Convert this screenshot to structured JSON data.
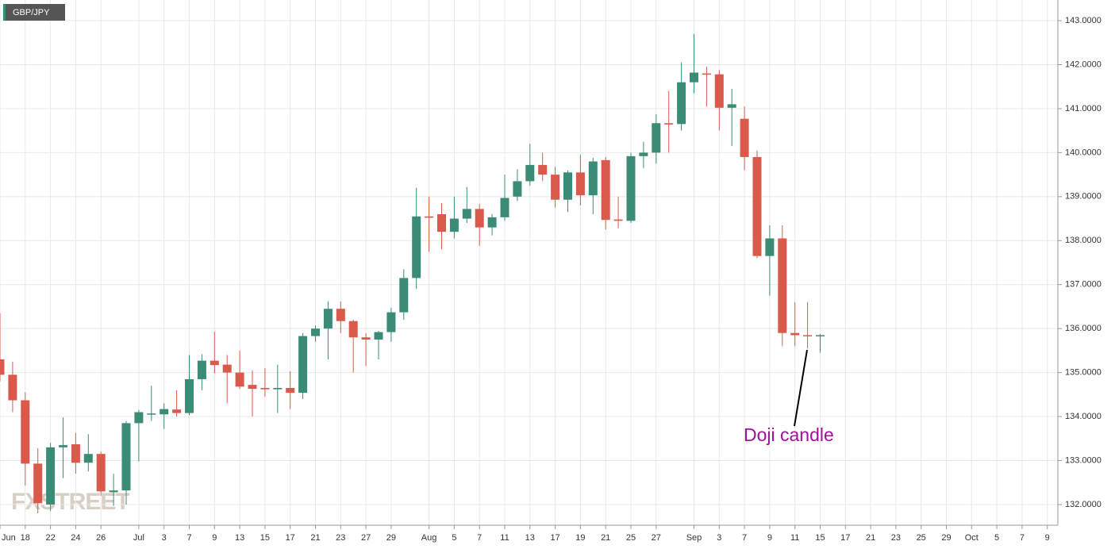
{
  "chart_data": {
    "type": "candlestick",
    "title": "GBP/JPY",
    "watermark": "FXSTREET",
    "annotation": "Doji candle",
    "up_color": "#3a8c77",
    "down_color": "#d9594b",
    "grid": true,
    "ylim": [
      131.53,
      143.47
    ],
    "yticks": [
      {
        "value": 132,
        "label": "132.0000"
      },
      {
        "value": 133,
        "label": "133.0000"
      },
      {
        "value": 134,
        "label": "134.0000"
      },
      {
        "value": 135,
        "label": "135.0000"
      },
      {
        "value": 136,
        "label": "136.0000"
      },
      {
        "value": 137,
        "label": "137.0000"
      },
      {
        "value": 138,
        "label": "138.0000"
      },
      {
        "value": 139,
        "label": "139.0000"
      },
      {
        "value": 140,
        "label": "140.0000"
      },
      {
        "value": 141,
        "label": "141.0000"
      },
      {
        "value": 142,
        "label": "142.0000"
      },
      {
        "value": 143,
        "label": "143.0000"
      }
    ],
    "categories": [
      "Jun",
      null,
      "18",
      null,
      "22",
      null,
      "24",
      null,
      "26",
      null,
      null,
      "Jul",
      null,
      "3",
      null,
      "7",
      null,
      "9",
      null,
      "13",
      null,
      "15",
      null,
      "17",
      null,
      "21",
      null,
      "23",
      null,
      "27",
      null,
      "29",
      null,
      null,
      "Aug",
      null,
      "5",
      null,
      "7",
      null,
      "11",
      null,
      "13",
      null,
      "17",
      null,
      "19",
      null,
      "21",
      null,
      "25",
      null,
      "27",
      null,
      null,
      "Sep",
      null,
      "3",
      null,
      "7",
      null,
      "9",
      null,
      "11",
      null,
      "15",
      null,
      "17",
      null,
      "21",
      null,
      "23",
      null,
      "25",
      null,
      "29",
      null,
      "Oct",
      null,
      "5",
      null,
      "7",
      null,
      "9"
    ],
    "open": [
      135.3,
      134.95,
      134.37,
      132.93,
      132.0,
      133.3,
      133.37,
      132.95,
      133.15,
      132.28,
      132.32,
      133.85,
      134.05,
      134.05,
      134.16,
      134.08,
      134.85,
      135.27,
      135.18,
      135.0,
      134.72,
      134.65,
      134.62,
      134.65,
      134.54,
      135.83,
      136.0,
      136.45,
      136.17,
      135.8,
      135.75,
      135.92,
      136.37,
      137.15,
      138.55,
      138.6,
      138.2,
      138.5,
      138.72,
      138.3,
      138.53,
      139.0,
      139.35,
      139.72,
      139.5,
      138.93,
      139.55,
      139.03,
      139.83,
      138.48,
      138.45,
      139.92,
      140.0,
      140.67,
      140.65,
      141.6,
      141.8,
      141.78,
      141.02,
      140.77,
      139.9,
      137.65,
      138.05,
      135.9,
      135.85,
      135.83,
      null,
      null,
      null,
      null,
      null,
      null,
      null,
      null,
      null,
      null,
      null,
      null,
      null,
      null,
      null,
      null,
      null,
      null
    ],
    "high": [
      136.35,
      135.25,
      134.55,
      133.28,
      133.4,
      133.98,
      133.63,
      133.6,
      133.2,
      132.7,
      133.9,
      134.15,
      134.7,
      134.3,
      134.6,
      135.4,
      135.42,
      135.93,
      135.4,
      135.5,
      135.05,
      135.1,
      135.18,
      135.03,
      135.9,
      136.07,
      136.62,
      136.62,
      136.2,
      135.9,
      135.95,
      136.47,
      137.35,
      139.2,
      139.0,
      138.85,
      139.0,
      139.22,
      138.83,
      138.6,
      139.5,
      139.62,
      140.2,
      140.0,
      139.68,
      139.6,
      139.95,
      139.88,
      139.9,
      139.0,
      140.0,
      140.25,
      140.87,
      141.4,
      142.05,
      142.7,
      141.95,
      141.88,
      141.45,
      141.05,
      140.05,
      138.35,
      138.35,
      136.6,
      136.6,
      135.88,
      null,
      null,
      null,
      null,
      null,
      null,
      null,
      null,
      null,
      null,
      null,
      null,
      null,
      null,
      null,
      null,
      null,
      null
    ],
    "low": [
      134.8,
      134.1,
      132.43,
      131.8,
      131.85,
      132.6,
      132.7,
      132.75,
      132.2,
      131.97,
      132.0,
      132.98,
      133.9,
      133.72,
      134.0,
      134.03,
      134.6,
      134.98,
      134.3,
      134.63,
      134.0,
      134.45,
      134.08,
      134.17,
      134.4,
      135.7,
      135.3,
      135.9,
      135.0,
      135.15,
      135.3,
      135.7,
      136.2,
      136.9,
      137.75,
      137.8,
      138.05,
      138.4,
      137.88,
      138.12,
      138.45,
      138.9,
      139.25,
      139.35,
      138.75,
      138.65,
      138.8,
      138.6,
      138.25,
      138.28,
      138.4,
      139.65,
      139.75,
      140.0,
      140.5,
      141.35,
      141.05,
      140.5,
      140.15,
      139.6,
      137.6,
      136.75,
      135.6,
      135.6,
      135.55,
      135.45,
      null,
      null,
      null,
      null,
      null,
      null,
      null,
      null,
      null,
      null,
      null,
      null,
      null,
      null,
      null,
      null,
      null,
      null
    ],
    "close": [
      134.95,
      134.37,
      132.93,
      132.03,
      133.3,
      133.35,
      132.95,
      133.15,
      132.3,
      132.32,
      133.85,
      134.1,
      134.07,
      134.17,
      134.08,
      134.85,
      135.27,
      135.17,
      135.0,
      134.68,
      134.63,
      134.62,
      134.65,
      134.54,
      135.83,
      136.0,
      136.45,
      136.17,
      135.8,
      135.75,
      135.92,
      136.37,
      137.15,
      138.55,
      138.52,
      138.2,
      138.5,
      138.72,
      138.3,
      138.53,
      138.97,
      139.35,
      139.72,
      139.5,
      138.93,
      139.55,
      139.03,
      139.8,
      138.47,
      138.45,
      139.92,
      140.0,
      140.67,
      140.64,
      141.6,
      141.82,
      141.78,
      141.02,
      141.1,
      139.9,
      137.65,
      138.05,
      135.9,
      135.85,
      135.83,
      135.85,
      null,
      null,
      null,
      null,
      null,
      null,
      null,
      null,
      null,
      null,
      null,
      null,
      null,
      null,
      null,
      null,
      null,
      null
    ]
  }
}
